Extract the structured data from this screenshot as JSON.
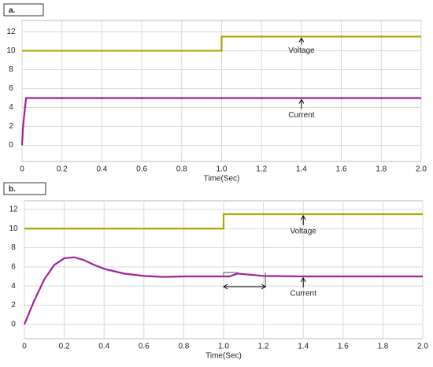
{
  "chart_data": [
    {
      "type": "line",
      "label": "a.",
      "xlabel": "Time(Sec)",
      "xlim": [
        0,
        2
      ],
      "xticks": [
        0,
        0.2,
        0.4,
        0.6,
        0.8,
        {
          "value": 1,
          "label": "1.0"
        },
        1.2,
        1.4,
        1.6,
        1.8,
        {
          "value": 2,
          "label": "2.0"
        }
      ],
      "ylim": [
        -1.7,
        13.2
      ],
      "yticks": [
        0,
        2,
        4,
        6,
        8,
        10,
        12
      ],
      "grid": true,
      "series": [
        {
          "name": "Voltage",
          "color": "#a8a800",
          "x": [
            0,
            1,
            1,
            2
          ],
          "values": [
            10,
            10,
            11.5,
            11.5
          ]
        },
        {
          "name": "Current",
          "color": "#a020a0",
          "x": [
            0,
            0.005,
            0.02,
            2
          ],
          "values": [
            0,
            2,
            5,
            5
          ]
        }
      ]
    },
    {
      "type": "line",
      "label": "b.",
      "xlabel": "Time(Sec)",
      "xlim": [
        0,
        2
      ],
      "xticks": [
        0,
        0.2,
        0.4,
        0.6,
        0.8,
        {
          "value": 1,
          "label": "1.0"
        },
        1.2,
        1.4,
        1.6,
        1.8,
        {
          "value": 2,
          "label": "2.0"
        }
      ],
      "ylim": [
        -1.5,
        12.9
      ],
      "yticks": [
        0,
        2,
        4,
        6,
        8,
        10,
        12
      ],
      "grid": true,
      "series": [
        {
          "name": "Voltage",
          "color": "#a8a800",
          "x": [
            0,
            1,
            1,
            2
          ],
          "values": [
            10,
            10,
            11.5,
            11.5
          ]
        },
        {
          "name": "Current",
          "color": "#a020a0",
          "x": [
            0,
            0.05,
            0.1,
            0.15,
            0.2,
            0.25,
            0.3,
            0.35,
            0.4,
            0.5,
            0.6,
            0.7,
            0.8,
            1.0,
            1.03,
            1.07,
            1.15,
            1.2,
            1.4,
            2.0
          ],
          "values": [
            0,
            2.5,
            4.7,
            6.2,
            6.9,
            7.0,
            6.7,
            6.2,
            5.8,
            5.3,
            5.05,
            4.95,
            5.0,
            5.0,
            5.0,
            5.3,
            5.15,
            5.05,
            5.0,
            5.0
          ]
        }
      ]
    }
  ]
}
